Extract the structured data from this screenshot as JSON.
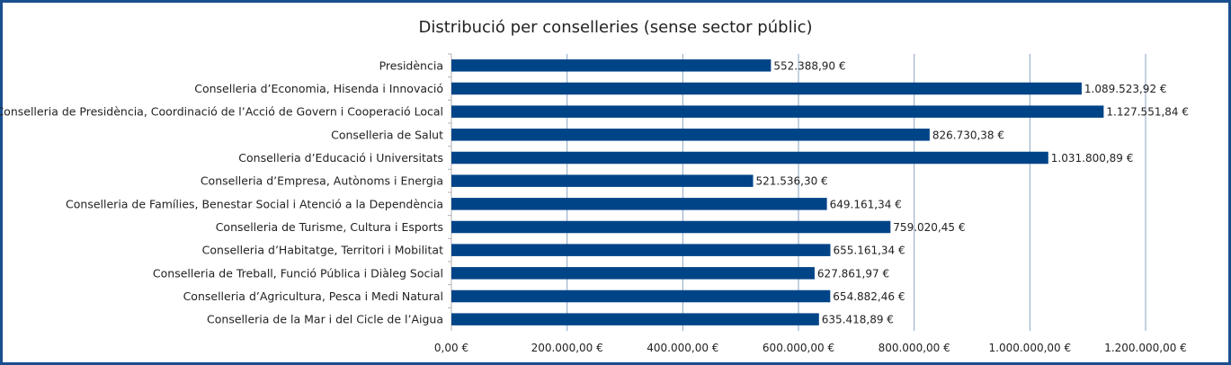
{
  "chart_data": {
    "type": "bar",
    "orientation": "horizontal",
    "title": "Distribució per conselleries (sense sector públic)",
    "categories": [
      "Presidència",
      "Conselleria d’Economia, Hisenda i Innovació",
      "Conselleria de Presidència, Coordinació de l’Acció de Govern i Cooperació Local",
      "Conselleria de Salut",
      "Conselleria d’Educació i Universitats",
      "Conselleria d’Empresa, Autònoms i Energia",
      "Conselleria de Famílies, Benestar Social i Atenció a la Dependència",
      "Conselleria de Turisme, Cultura i Esports",
      "Conselleria d’Habitatge, Territori i Mobilitat",
      "Conselleria de Treball, Funció Pública i Diàleg Social",
      "Conselleria d’Agricultura, Pesca i Medi Natural",
      "Conselleria de la Mar i del Cicle de l’Aigua"
    ],
    "values": [
      552388.9,
      1089523.92,
      1127551.84,
      826730.38,
      1031800.89,
      521536.3,
      649161.34,
      759020.45,
      655161.34,
      627861.97,
      654882.46,
      635418.89
    ],
    "value_labels": [
      "552.388,90 €",
      "1.089.523,92 €",
      "1.127.551,84 €",
      "826.730,38 €",
      "1.031.800,89 €",
      "521.536,30 €",
      "649.161,34 €",
      "759.020,45 €",
      "655.161,34 €",
      "627.861,97 €",
      "654.882,46 €",
      "635.418,89 €"
    ],
    "xlim": [
      0,
      1200000
    ],
    "x_ticks": [
      0,
      200000,
      400000,
      600000,
      800000,
      1000000,
      1200000
    ],
    "x_tick_labels": [
      "0,00 €",
      "200.000,00 €",
      "400.000,00 €",
      "600.000,00 €",
      "800.000,00 €",
      "1.000.000,00 €",
      "1.200.000,00 €"
    ],
    "grid": true,
    "legend": "none",
    "bar_color": "#004488"
  }
}
